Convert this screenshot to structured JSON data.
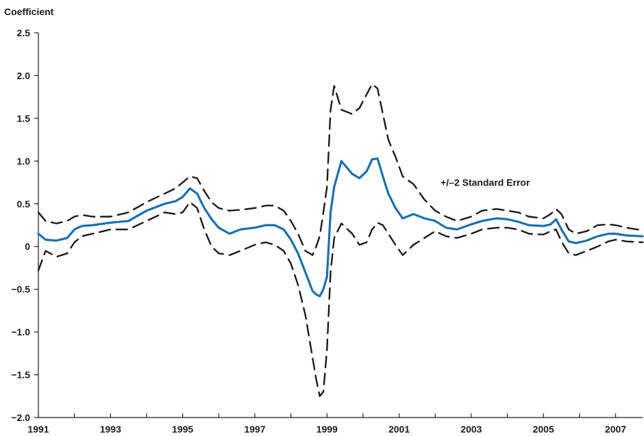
{
  "chart_data": {
    "type": "line",
    "title": "",
    "ylabel": "Coefficient",
    "xlabel": "",
    "xlim": [
      1991.0,
      2007.75
    ],
    "ylim": [
      -2.0,
      2.5
    ],
    "y_ticks": [
      2.5,
      2.0,
      1.5,
      1.0,
      0.5,
      0,
      -0.5,
      -1.0,
      -1.5,
      -2.0
    ],
    "y_tick_labels": [
      "2.5",
      "2.0",
      "1.5",
      "1.0",
      "0.5",
      "0",
      "−0.5",
      "−1.0",
      "−1.5",
      "−2.0"
    ],
    "x_major_ticks": [
      1991,
      1992,
      1993,
      1994,
      1995,
      1996,
      1997,
      1998,
      1999,
      2000,
      2001,
      2002,
      2003,
      2004,
      2005,
      2006,
      2007
    ],
    "x_tick_labels": [
      {
        "year": 1991,
        "label": "1991"
      },
      {
        "year": 1993,
        "label": "1993"
      },
      {
        "year": 1995,
        "label": "1995"
      },
      {
        "year": 1997,
        "label": "1997"
      },
      {
        "year": 1999,
        "label": "1999"
      },
      {
        "year": 2001,
        "label": "2001"
      },
      {
        "year": 2003,
        "label": "2003"
      },
      {
        "year": 2005,
        "label": "2005"
      },
      {
        "year": 2007,
        "label": "2007"
      }
    ],
    "grid": false,
    "annotation": {
      "text": "+/–2 Standard Error",
      "x": 2002.15,
      "y": 0.75
    },
    "series": [
      {
        "role": "coefficient",
        "color": "#1b6fae",
        "style": "solid",
        "x": [
          1991.0,
          1991.2,
          1991.5,
          1991.8,
          1992.0,
          1992.2,
          1992.5,
          1993.0,
          1993.5,
          1994.0,
          1994.5,
          1994.8,
          1995.0,
          1995.2,
          1995.4,
          1995.6,
          1995.8,
          1996.0,
          1996.3,
          1996.6,
          1997.0,
          1997.3,
          1997.55,
          1997.8,
          1998.0,
          1998.2,
          1998.4,
          1998.6,
          1998.7,
          1998.8,
          1998.9,
          1999.0,
          1999.1,
          1999.2,
          1999.4,
          1999.7,
          1999.9,
          2000.1,
          2000.25,
          2000.4,
          2000.55,
          2000.7,
          2000.9,
          2001.1,
          2001.4,
          2001.7,
          2002.0,
          2002.3,
          2002.6,
          2003.0,
          2003.3,
          2003.7,
          2004.0,
          2004.3,
          2004.6,
          2005.0,
          2005.2,
          2005.35,
          2005.5,
          2005.7,
          2005.9,
          2006.2,
          2006.5,
          2006.8,
          2007.0,
          2007.3,
          2007.75
        ],
        "y": [
          0.15,
          0.08,
          0.07,
          0.1,
          0.2,
          0.24,
          0.25,
          0.28,
          0.3,
          0.42,
          0.5,
          0.53,
          0.58,
          0.68,
          0.62,
          0.45,
          0.32,
          0.22,
          0.15,
          0.2,
          0.22,
          0.25,
          0.25,
          0.2,
          0.08,
          -0.08,
          -0.3,
          -0.52,
          -0.56,
          -0.58,
          -0.5,
          -0.35,
          0.4,
          0.7,
          1.0,
          0.85,
          0.8,
          0.88,
          1.02,
          1.03,
          0.82,
          0.62,
          0.45,
          0.33,
          0.38,
          0.33,
          0.3,
          0.22,
          0.2,
          0.26,
          0.3,
          0.33,
          0.32,
          0.29,
          0.25,
          0.24,
          0.26,
          0.32,
          0.2,
          0.06,
          0.04,
          0.07,
          0.12,
          0.15,
          0.15,
          0.13,
          0.12
        ]
      },
      {
        "role": "upper-band",
        "color": "#1a1a1a",
        "style": "dashed",
        "x": [
          1991.0,
          1991.2,
          1991.5,
          1991.8,
          1992.0,
          1992.2,
          1992.5,
          1993.0,
          1993.5,
          1994.0,
          1994.5,
          1994.8,
          1995.0,
          1995.2,
          1995.4,
          1995.6,
          1995.8,
          1996.0,
          1996.3,
          1996.6,
          1997.0,
          1997.3,
          1997.55,
          1997.8,
          1998.0,
          1998.2,
          1998.4,
          1998.6,
          1998.7,
          1998.8,
          1998.9,
          1999.0,
          1999.1,
          1999.2,
          1999.4,
          1999.7,
          1999.9,
          2000.1,
          2000.25,
          2000.4,
          2000.55,
          2000.7,
          2000.9,
          2001.1,
          2001.4,
          2001.7,
          2002.0,
          2002.3,
          2002.6,
          2003.0,
          2003.3,
          2003.7,
          2004.0,
          2004.3,
          2004.6,
          2005.0,
          2005.2,
          2005.35,
          2005.5,
          2005.7,
          2005.9,
          2006.2,
          2006.5,
          2006.8,
          2007.0,
          2007.3,
          2007.75
        ],
        "y": [
          0.4,
          0.3,
          0.27,
          0.3,
          0.35,
          0.37,
          0.35,
          0.35,
          0.4,
          0.52,
          0.62,
          0.68,
          0.75,
          0.82,
          0.8,
          0.65,
          0.52,
          0.45,
          0.42,
          0.43,
          0.45,
          0.48,
          0.48,
          0.42,
          0.3,
          0.15,
          -0.05,
          -0.1,
          0.0,
          0.12,
          0.4,
          0.7,
          1.6,
          1.88,
          1.6,
          1.55,
          1.62,
          1.78,
          1.9,
          1.85,
          1.55,
          1.25,
          1.05,
          0.82,
          0.73,
          0.55,
          0.42,
          0.35,
          0.3,
          0.35,
          0.42,
          0.44,
          0.42,
          0.4,
          0.35,
          0.33,
          0.38,
          0.44,
          0.38,
          0.2,
          0.15,
          0.18,
          0.25,
          0.26,
          0.25,
          0.22,
          0.19
        ]
      },
      {
        "role": "lower-band",
        "color": "#1a1a1a",
        "style": "dashed",
        "x": [
          1991.0,
          1991.2,
          1991.5,
          1991.8,
          1992.0,
          1992.2,
          1992.5,
          1993.0,
          1993.5,
          1994.0,
          1994.5,
          1994.8,
          1995.0,
          1995.2,
          1995.4,
          1995.6,
          1995.8,
          1996.0,
          1996.3,
          1996.6,
          1997.0,
          1997.3,
          1997.55,
          1997.8,
          1998.0,
          1998.2,
          1998.4,
          1998.6,
          1998.7,
          1998.8,
          1998.9,
          1999.0,
          1999.1,
          1999.2,
          1999.4,
          1999.7,
          1999.9,
          2000.1,
          2000.25,
          2000.4,
          2000.55,
          2000.7,
          2000.9,
          2001.1,
          2001.4,
          2001.7,
          2002.0,
          2002.3,
          2002.6,
          2003.0,
          2003.3,
          2003.7,
          2004.0,
          2004.3,
          2004.6,
          2005.0,
          2005.2,
          2005.35,
          2005.5,
          2005.7,
          2005.9,
          2006.2,
          2006.5,
          2006.8,
          2007.0,
          2007.3,
          2007.75
        ],
        "y": [
          -0.28,
          -0.05,
          -0.12,
          -0.08,
          0.05,
          0.12,
          0.15,
          0.2,
          0.2,
          0.3,
          0.4,
          0.38,
          0.4,
          0.52,
          0.45,
          0.2,
          0.0,
          -0.08,
          -0.1,
          -0.05,
          0.02,
          0.05,
          0.02,
          -0.05,
          -0.2,
          -0.45,
          -0.8,
          -1.3,
          -1.55,
          -1.75,
          -1.7,
          -1.2,
          -0.3,
          0.1,
          0.27,
          0.15,
          0.02,
          0.05,
          0.2,
          0.28,
          0.25,
          0.15,
          0.02,
          -0.1,
          0.02,
          0.1,
          0.18,
          0.12,
          0.1,
          0.15,
          0.2,
          0.22,
          0.22,
          0.2,
          0.15,
          0.14,
          0.18,
          0.2,
          0.06,
          -0.08,
          -0.1,
          -0.05,
          0.0,
          0.06,
          0.08,
          0.06,
          0.05
        ]
      }
    ]
  }
}
